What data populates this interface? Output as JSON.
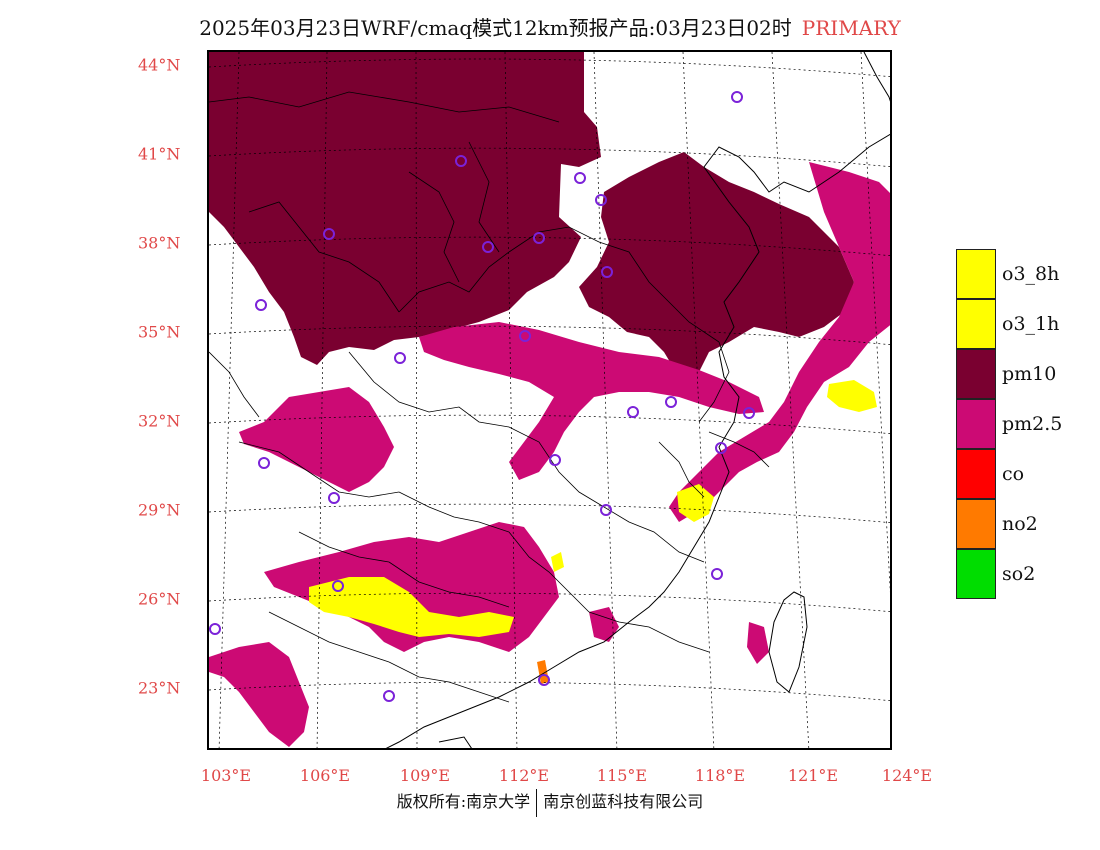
{
  "header": {
    "title": "2025年03月23日WRF/cmaq模式12km预报产品:03月23日02时",
    "tag": "PRIMARY"
  },
  "axes": {
    "lat_labels": [
      "44°N",
      "41°N",
      "38°N",
      "35°N",
      "32°N",
      "29°N",
      "26°N",
      "23°N"
    ],
    "lon_labels": [
      "103°E",
      "106°E",
      "109°E",
      "112°E",
      "115°E",
      "118°E",
      "121°E",
      "124°E"
    ]
  },
  "legend": {
    "items": [
      {
        "label": "o3_8h",
        "color": "#ffff00"
      },
      {
        "label": "o3_1h",
        "color": "#ffff00"
      },
      {
        "label": "pm10",
        "color": "#7a0030"
      },
      {
        "label": "pm2.5",
        "color": "#cc0a74"
      },
      {
        "label": "co",
        "color": "#ff0000"
      },
      {
        "label": "no2",
        "color": "#ff7a00"
      },
      {
        "label": "so2",
        "color": "#00dd00"
      }
    ]
  },
  "footer": {
    "left": "版权所有:南京大学",
    "right": "南京创蓝科技有限公司"
  },
  "colors": {
    "accent": "#e04848",
    "pm10": "#7a0030",
    "pm25": "#cc0a74",
    "o3": "#ffff00",
    "no2": "#ff7a00",
    "station": "#7b22d8"
  }
}
